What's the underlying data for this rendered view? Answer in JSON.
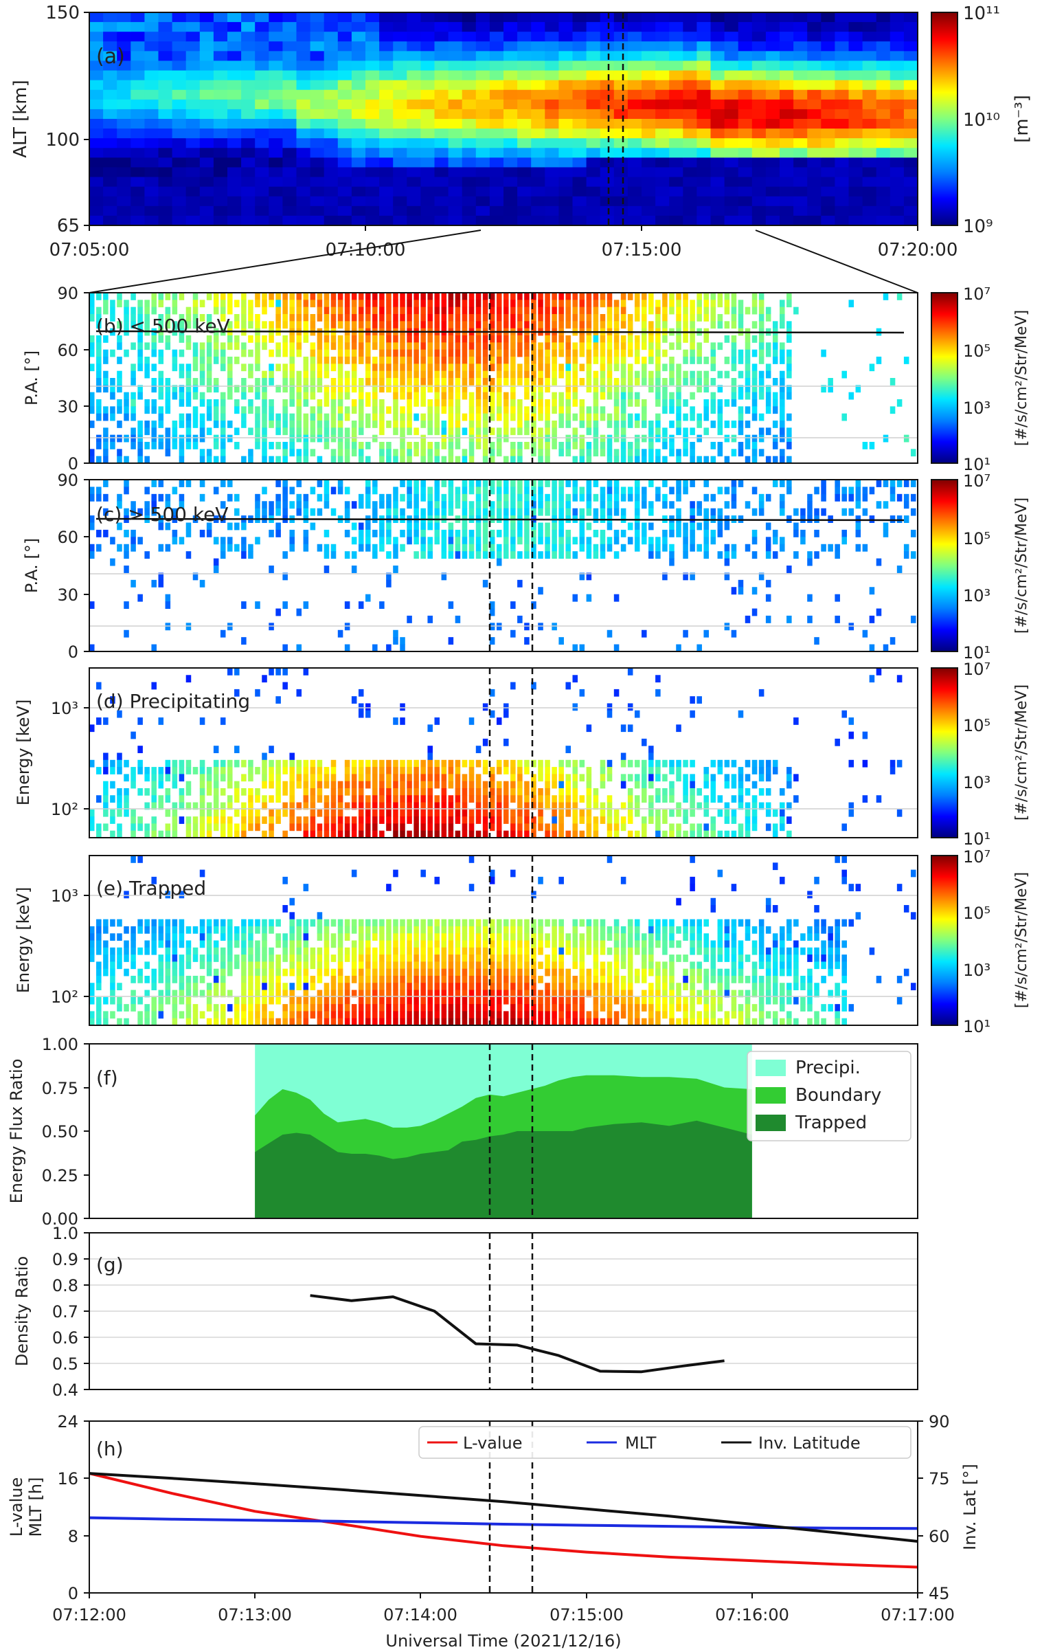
{
  "colorbar_colors": [
    "#00007f",
    "#0000ff",
    "#0080ff",
    "#00e6ff",
    "#80ff80",
    "#ffff00",
    "#ff8000",
    "#ff0000",
    "#7f0000"
  ],
  "panels": {
    "a": {
      "label": "(a)",
      "ylabel": "ALT [km]",
      "yticks": [
        "65",
        "100",
        "150"
      ],
      "xticks": [
        "07:05:00",
        "07:10:00",
        "07:15:00",
        "07:20:00"
      ],
      "cbar_label": "[m⁻³]",
      "cbar_ticks": [
        "10¹¹",
        "10¹⁰",
        "10⁹"
      ]
    },
    "b": {
      "label": "(b) < 500 keV",
      "ylabel": "P.A. [°]",
      "yticks": [
        "0",
        "30",
        "60",
        "90"
      ],
      "cbar_label": "[#/s/cm²/Str/MeV]",
      "cbar_ticks": [
        "10⁷",
        "10⁵",
        "10³",
        "10¹"
      ]
    },
    "c": {
      "label": "(c) > 500 keV",
      "ylabel": "P.A. [°]",
      "yticks": [
        "0",
        "30",
        "60",
        "90"
      ],
      "cbar_label": "[#/s/cm²/Str/MeV]",
      "cbar_ticks": [
        "10⁷",
        "10⁵",
        "10³",
        "10¹"
      ]
    },
    "d": {
      "label": "(d) Precipitating",
      "ylabel": "Energy [keV]",
      "yticks": [
        "10²",
        "10³"
      ],
      "cbar_label": "[#/s/cm²/Str/MeV]",
      "cbar_ticks": [
        "10⁷",
        "10⁵",
        "10³",
        "10¹"
      ]
    },
    "e": {
      "label": "(e) Trapped",
      "ylabel": "Energy [keV]",
      "yticks": [
        "10²",
        "10³"
      ],
      "cbar_label": "[#/s/cm²/Str/MeV]",
      "cbar_ticks": [
        "10⁷",
        "10⁵",
        "10³",
        "10¹"
      ]
    },
    "f": {
      "label": "(f)",
      "ylabel": "Energy Flux Ratio",
      "yticks": [
        "0.00",
        "0.25",
        "0.50",
        "0.75",
        "1.00"
      ]
    },
    "g": {
      "label": "(g)",
      "ylabel": "Density Ratio",
      "yticks": [
        "0.4",
        "0.5",
        "0.6",
        "0.7",
        "0.8",
        "0.9",
        "1.0"
      ]
    },
    "h": {
      "label": "(h)",
      "ylabel_line1": "L-value",
      "ylabel_line2": "MLT [h]",
      "yticks": [
        "0",
        "8",
        "16",
        "24"
      ],
      "y2label": "Inv. Lat [°]",
      "y2ticks": [
        "45",
        "60",
        "75",
        "90"
      ],
      "xticks": [
        "07:12:00",
        "07:13:00",
        "07:14:00",
        "07:15:00",
        "07:16:00",
        "07:17:00"
      ],
      "xlabel": "Universal Time (2021/12/16)"
    }
  },
  "chart_data": [
    {
      "type": "heatmap",
      "panel": "a",
      "ylabel": "ALT [km]",
      "ylim": [
        65,
        150
      ],
      "x_range": [
        "07:05:00",
        "07:20:00"
      ],
      "colorbar": {
        "label": "[m⁻³]",
        "scale": "log",
        "range": [
          1000000000.0,
          100000000000.0
        ]
      },
      "marked_times": [
        "07:14:26",
        "07:14:41"
      ]
    },
    {
      "type": "heatmap",
      "panel": "b",
      "label": "(b) < 500 keV",
      "ylabel": "P.A. [°]",
      "ylim": [
        0,
        90
      ],
      "x_range": [
        "07:12:00",
        "07:17:00"
      ],
      "colorbar": {
        "label": "[#/s/cm²/Str/MeV]",
        "scale": "log",
        "range": [
          10,
          10000000.0
        ]
      },
      "reference_line_pa": 70,
      "marked_times": [
        "07:14:26",
        "07:14:41"
      ]
    },
    {
      "type": "heatmap",
      "panel": "c",
      "label": "(c) > 500 keV",
      "ylabel": "P.A. [°]",
      "ylim": [
        0,
        90
      ],
      "x_range": [
        "07:12:00",
        "07:17:00"
      ],
      "colorbar": {
        "label": "[#/s/cm²/Str/MeV]",
        "scale": "log",
        "range": [
          10,
          10000000.0
        ]
      },
      "reference_line_pa": 70,
      "marked_times": [
        "07:14:26",
        "07:14:41"
      ]
    },
    {
      "type": "heatmap",
      "panel": "d",
      "label": "(d) Precipitating",
      "ylabel": "Energy [keV]",
      "yscale": "log",
      "ylim": [
        50,
        2500
      ],
      "x_range": [
        "07:12:00",
        "07:17:00"
      ],
      "colorbar": {
        "label": "[#/s/cm²/Str/MeV]",
        "scale": "log",
        "range": [
          10,
          10000000.0
        ]
      },
      "marked_times": [
        "07:14:26",
        "07:14:41"
      ]
    },
    {
      "type": "heatmap",
      "panel": "e",
      "label": "(e) Trapped",
      "ylabel": "Energy [keV]",
      "yscale": "log",
      "ylim": [
        50,
        2500
      ],
      "x_range": [
        "07:12:00",
        "07:17:00"
      ],
      "colorbar": {
        "label": "[#/s/cm²/Str/MeV]",
        "scale": "log",
        "range": [
          10,
          10000000.0
        ]
      },
      "marked_times": [
        "07:14:26",
        "07:14:41"
      ]
    },
    {
      "type": "area",
      "panel": "f",
      "ylabel": "Energy Flux Ratio",
      "ylim": [
        0,
        1
      ],
      "x": [
        "07:13:00",
        "07:13:05",
        "07:13:10",
        "07:13:15",
        "07:13:20",
        "07:13:25",
        "07:13:30",
        "07:13:35",
        "07:13:40",
        "07:13:45",
        "07:13:50",
        "07:13:55",
        "07:14:00",
        "07:14:05",
        "07:14:10",
        "07:14:15",
        "07:14:20",
        "07:14:25",
        "07:14:30",
        "07:14:35",
        "07:14:40",
        "07:14:45",
        "07:14:50",
        "07:14:55",
        "07:15:00",
        "07:15:10",
        "07:15:20",
        "07:15:30",
        "07:15:40",
        "07:15:50",
        "07:16:00"
      ],
      "series": [
        {
          "name": "Trapped",
          "color": "#1f8a2e",
          "values": [
            0.38,
            0.43,
            0.48,
            0.49,
            0.48,
            0.43,
            0.38,
            0.37,
            0.37,
            0.36,
            0.34,
            0.35,
            0.37,
            0.38,
            0.39,
            0.44,
            0.45,
            0.47,
            0.48,
            0.5,
            0.5,
            0.5,
            0.5,
            0.5,
            0.52,
            0.54,
            0.55,
            0.53,
            0.56,
            0.52,
            0.48
          ]
        },
        {
          "name": "Boundary",
          "color": "#33cc33",
          "values": [
            0.59,
            0.68,
            0.74,
            0.72,
            0.68,
            0.6,
            0.55,
            0.56,
            0.57,
            0.55,
            0.52,
            0.52,
            0.53,
            0.56,
            0.6,
            0.64,
            0.69,
            0.71,
            0.7,
            0.72,
            0.74,
            0.76,
            0.79,
            0.81,
            0.82,
            0.82,
            0.81,
            0.81,
            0.8,
            0.75,
            0.74
          ]
        },
        {
          "name": "Precipi.",
          "color": "#7fffd4",
          "values": [
            1.0,
            1.0,
            1.0,
            1.0,
            1.0,
            1.0,
            1.0,
            1.0,
            1.0,
            1.0,
            1.0,
            1.0,
            1.0,
            1.0,
            1.0,
            1.0,
            1.0,
            1.0,
            1.0,
            1.0,
            1.0,
            1.0,
            1.0,
            1.0,
            1.0,
            1.0,
            1.0,
            1.0,
            1.0,
            1.0,
            1.0
          ]
        }
      ],
      "legend_position": "top-right"
    },
    {
      "type": "line",
      "panel": "g",
      "ylabel": "Density Ratio",
      "ylim": [
        0.4,
        1.0
      ],
      "x": [
        "07:13:20",
        "07:13:35",
        "07:13:50",
        "07:14:05",
        "07:14:20",
        "07:14:35",
        "07:14:50",
        "07:15:05",
        "07:15:20",
        "07:15:35",
        "07:15:50"
      ],
      "series": [
        {
          "color": "#111111",
          "values": [
            0.76,
            0.74,
            0.755,
            0.7,
            0.575,
            0.57,
            0.53,
            0.47,
            0.468,
            0.49,
            0.51
          ]
        }
      ]
    },
    {
      "type": "line",
      "panel": "h",
      "ylabel": "L-value MLT [h]",
      "ylim": [
        0,
        24
      ],
      "y2label": "Inv. Lat [°]",
      "y2lim": [
        45,
        90
      ],
      "xlabel": "Universal Time (2021/12/16)",
      "x": [
        "07:12:00",
        "07:12:30",
        "07:13:00",
        "07:13:30",
        "07:14:00",
        "07:14:30",
        "07:15:00",
        "07:15:30",
        "07:16:00",
        "07:16:30",
        "07:17:00"
      ],
      "series": [
        {
          "name": "L-value",
          "axis": "left",
          "color": "#ee1111",
          "values": [
            16.7,
            13.9,
            11.4,
            9.7,
            7.9,
            6.6,
            5.7,
            5.0,
            4.5,
            4.0,
            3.6
          ]
        },
        {
          "name": "MLT",
          "axis": "left",
          "color": "#1b2be0",
          "values": [
            10.5,
            10.3,
            10.15,
            10.0,
            9.8,
            9.6,
            9.45,
            9.3,
            9.15,
            9.05,
            9.0
          ]
        },
        {
          "name": "Inv. Latitude",
          "axis": "right",
          "color": "#111111",
          "values": [
            76.3,
            75.0,
            73.6,
            72.1,
            70.5,
            68.9,
            67.0,
            65.1,
            63.0,
            60.8,
            58.5
          ]
        }
      ],
      "legend_position": "top-right",
      "marked_times": [
        "07:14:26",
        "07:14:41"
      ]
    }
  ]
}
